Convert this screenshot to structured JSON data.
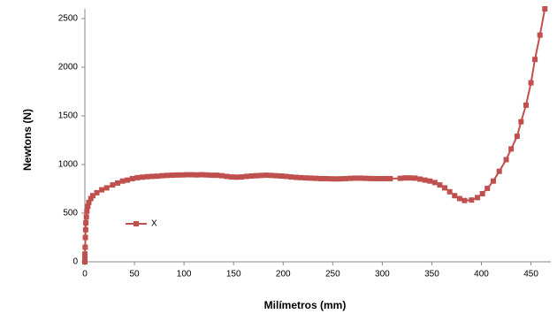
{
  "chart_data": {
    "type": "line",
    "x_label": "Milímetros (mm)",
    "y_label": "Newtons (N)",
    "xlim": [
      0,
      470
    ],
    "ylim": [
      0,
      2600
    ],
    "xticks": [
      0,
      50,
      100,
      150,
      200,
      250,
      300,
      350,
      400,
      450
    ],
    "yticks": [
      0,
      500,
      1000,
      1500,
      2000,
      2500
    ],
    "legend": "left",
    "series": [
      {
        "name": "X",
        "color": "#c0504d",
        "x": [
          0,
          0,
          0,
          0.3,
          0.5,
          0.8,
          1,
          1.5,
          2,
          3,
          4,
          6,
          8,
          12,
          17,
          22,
          28,
          33,
          38,
          43,
          48,
          53,
          58,
          63,
          68,
          73,
          78,
          83,
          88,
          93,
          98,
          103,
          108,
          113,
          118,
          123,
          128,
          133,
          138,
          143,
          148,
          153,
          158,
          163,
          168,
          173,
          178,
          183,
          188,
          193,
          198,
          203,
          208,
          213,
          218,
          223,
          228,
          233,
          238,
          243,
          248,
          253,
          258,
          263,
          268,
          273,
          278,
          283,
          288,
          293,
          298,
          303,
          308,
          318,
          323,
          328,
          333,
          338,
          343,
          348,
          353,
          358,
          363,
          368,
          373,
          378,
          383,
          390,
          396,
          401,
          406,
          412,
          418,
          425,
          430,
          436,
          440,
          445,
          450,
          454,
          459,
          464
        ],
        "values": [
          0,
          30,
          80,
          150,
          250,
          330,
          400,
          460,
          520,
          570,
          610,
          650,
          680,
          710,
          740,
          760,
          790,
          810,
          830,
          840,
          855,
          865,
          870,
          875,
          878,
          880,
          885,
          888,
          890,
          892,
          893,
          895,
          895,
          893,
          895,
          893,
          890,
          890,
          885,
          878,
          872,
          870,
          872,
          878,
          882,
          885,
          888,
          890,
          888,
          885,
          882,
          878,
          872,
          868,
          865,
          862,
          860,
          858,
          855,
          855,
          853,
          852,
          853,
          855,
          858,
          860,
          860,
          858,
          856,
          855,
          855,
          855,
          855,
          858,
          862,
          862,
          860,
          850,
          840,
          830,
          815,
          790,
          760,
          720,
          680,
          650,
          630,
          635,
          660,
          700,
          755,
          830,
          930,
          1050,
          1160,
          1290,
          1440,
          1610,
          1840,
          2080,
          2330,
          2600
        ]
      }
    ]
  }
}
